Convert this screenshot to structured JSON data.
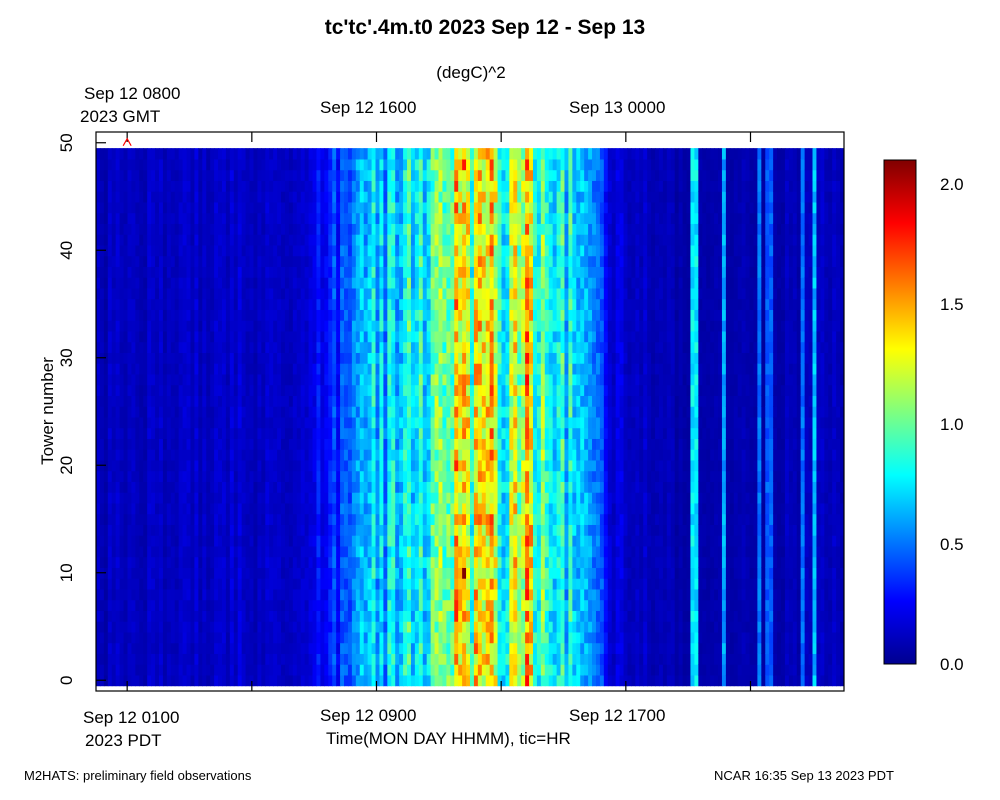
{
  "title": "tc'tc'.4m.t0 2023 Sep 12 - Sep 13",
  "units": "(degC)^2",
  "chart_data": {
    "type": "heatmap",
    "title": "tc'tc'.4m.t0 2023 Sep 12 - Sep 13",
    "xlabel": "Time(MON DAY HHMM), tic=HR",
    "ylabel": "Tower number",
    "x_range_hours_pdt": [
      0,
      24
    ],
    "ylim": [
      -1,
      51
    ],
    "y_ticks": [
      0,
      10,
      20,
      30,
      40,
      50
    ],
    "x_ticks_bottom": [
      {
        "line1": "Sep 12 0100",
        "line2": "2023 PDT"
      },
      {
        "line1": "Sep 12 0900",
        "line2": ""
      },
      {
        "line1": "Sep 12 1700",
        "line2": ""
      }
    ],
    "x_ticks_top": [
      {
        "line1": "Sep 12 0800",
        "line2": "2023 GMT"
      },
      {
        "line1": "Sep 12 1600",
        "line2": ""
      },
      {
        "line1": "Sep 13 0000",
        "line2": ""
      }
    ],
    "colorbar": {
      "min": 0.0,
      "max": 2.1,
      "ticks": [
        "0.0",
        "0.5",
        "1.0",
        "1.5",
        "2.0"
      ],
      "colormap": "jet"
    },
    "towers": [
      0,
      49
    ],
    "time_profile": [
      {
        "hour": 0.0,
        "value": 0.12
      },
      {
        "hour": 6.5,
        "value": 0.16
      },
      {
        "hour": 7.5,
        "value": 0.3
      },
      {
        "hour": 8.5,
        "value": 0.55
      },
      {
        "hour": 10.0,
        "value": 0.8
      },
      {
        "hour": 11.5,
        "value": 1.1
      },
      {
        "hour": 12.5,
        "value": 1.2
      },
      {
        "hour": 13.0,
        "value": 1.05
      },
      {
        "hour": 13.5,
        "value": 1.3
      },
      {
        "hour": 14.5,
        "value": 0.85
      },
      {
        "hour": 15.5,
        "value": 0.7
      },
      {
        "hour": 16.0,
        "value": 0.45
      },
      {
        "hour": 16.5,
        "value": 0.18
      },
      {
        "hour": 19.0,
        "value": 0.08
      },
      {
        "hour": 24.0,
        "value": 0.12
      }
    ],
    "hot_spots": [
      {
        "hour": 11.8,
        "tower": 10,
        "value": 2.1
      },
      {
        "hour": 11.8,
        "tower": 48,
        "value": 1.8
      },
      {
        "hour": 12.6,
        "tower": 33,
        "value": 1.55
      }
    ],
    "sparse_spikes": [
      {
        "hour": 19.2,
        "value": 0.75
      },
      {
        "hour": 20.1,
        "value": 0.6
      },
      {
        "hour": 21.3,
        "value": 0.5
      },
      {
        "hour": 21.6,
        "value": 0.45
      },
      {
        "hour": 22.7,
        "value": 0.5
      },
      {
        "hour": 23.1,
        "value": 0.65
      }
    ],
    "marker": {
      "symbol": "^",
      "hour": 1.0,
      "tower": 50,
      "color": "#ff0000"
    }
  },
  "footer_left": "M2HATS: preliminary field observations",
  "footer_right": "NCAR 16:35 Sep 13 2023 PDT"
}
